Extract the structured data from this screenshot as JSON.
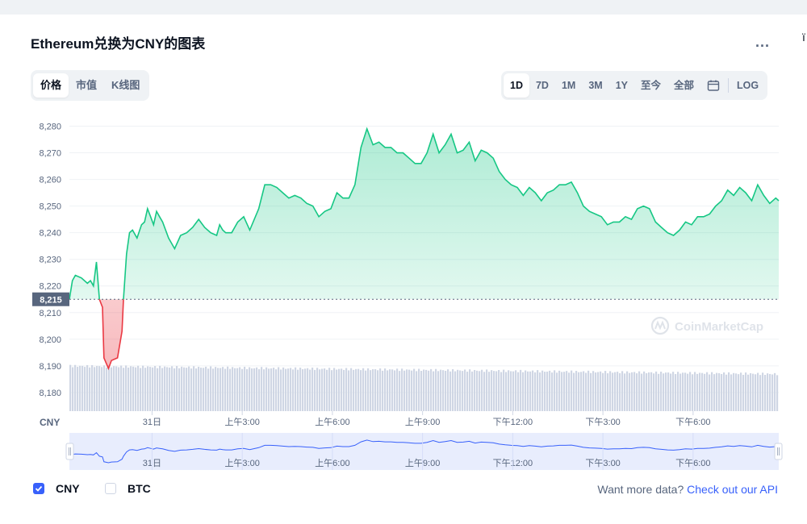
{
  "header": {
    "title": "Ethereum兑换为CNY的图表",
    "more_label": "...",
    "edge_glyph": "ï"
  },
  "view_tabs": [
    {
      "label": "价格",
      "active": true
    },
    {
      "label": "市值",
      "active": false
    },
    {
      "label": "K线图",
      "active": false
    }
  ],
  "range_tabs": [
    {
      "label": "1D",
      "active": true
    },
    {
      "label": "7D",
      "active": false
    },
    {
      "label": "1M",
      "active": false
    },
    {
      "label": "3M",
      "active": false
    },
    {
      "label": "1Y",
      "active": false
    },
    {
      "label": "至今",
      "active": false
    },
    {
      "label": "全部",
      "active": false
    }
  ],
  "calendar_icon": "calendar-icon",
  "log_label": "LOG",
  "chart_data": {
    "type": "line",
    "currency_label": "CNY",
    "y_ticks": [
      "8,280",
      "8,270",
      "8,260",
      "8,250",
      "8,240",
      "8,230",
      "8,220",
      "8,210",
      "8,200",
      "8,190",
      "8,180"
    ],
    "ylim": [
      8173,
      8285
    ],
    "x_ticks": [
      "31日",
      "上午3:00",
      "上午6:00",
      "上午9:00",
      "下午12:00",
      "下午3:00",
      "下午6:00"
    ],
    "x_tick_times": [
      1.75,
      4.75,
      7.75,
      10.75,
      13.75,
      16.75,
      19.75
    ],
    "time_range": [
      -1,
      22.6
    ],
    "open_price": 8215,
    "open_label": "8,215",
    "watermark": "CoinMarketCap",
    "colors": {
      "up": "#16c784",
      "down": "#ea3943",
      "volume": "#cfd6e4",
      "navigator": "#3861fb"
    },
    "series": [
      {
        "values": [
          [
            -1,
            8215
          ],
          [
            -0.9,
            8222
          ],
          [
            -0.8,
            8224
          ],
          [
            -0.6,
            8223
          ],
          [
            -0.4,
            8221
          ],
          [
            -0.3,
            8222
          ],
          [
            -0.2,
            8220
          ],
          [
            -0.1,
            8229
          ],
          [
            0,
            8215
          ],
          [
            0.1,
            8212
          ],
          [
            0.15,
            8193
          ],
          [
            0.3,
            8189
          ],
          [
            0.4,
            8192
          ],
          [
            0.6,
            8193
          ],
          [
            0.75,
            8203
          ],
          [
            0.8,
            8215
          ],
          [
            0.9,
            8232
          ],
          [
            1.0,
            8240
          ],
          [
            1.1,
            8241
          ],
          [
            1.25,
            8238
          ],
          [
            1.4,
            8243
          ],
          [
            1.5,
            8244
          ],
          [
            1.6,
            8249
          ],
          [
            1.7,
            8246
          ],
          [
            1.8,
            8243
          ],
          [
            1.9,
            8248
          ],
          [
            2.0,
            8246
          ],
          [
            2.1,
            8244
          ],
          [
            2.3,
            8238
          ],
          [
            2.5,
            8234
          ],
          [
            2.7,
            8239
          ],
          [
            2.9,
            8240
          ],
          [
            3.1,
            8242
          ],
          [
            3.3,
            8245
          ],
          [
            3.5,
            8242
          ],
          [
            3.7,
            8240
          ],
          [
            3.9,
            8239
          ],
          [
            4.0,
            8243
          ],
          [
            4.1,
            8241
          ],
          [
            4.2,
            8240
          ],
          [
            4.4,
            8240
          ],
          [
            4.6,
            8244
          ],
          [
            4.8,
            8246
          ],
          [
            5.0,
            8241
          ],
          [
            5.3,
            8249
          ],
          [
            5.5,
            8258
          ],
          [
            5.7,
            8258
          ],
          [
            5.9,
            8257
          ],
          [
            6.1,
            8255
          ],
          [
            6.3,
            8253
          ],
          [
            6.5,
            8254
          ],
          [
            6.7,
            8253
          ],
          [
            6.9,
            8251
          ],
          [
            7.1,
            8250
          ],
          [
            7.3,
            8246
          ],
          [
            7.5,
            8248
          ],
          [
            7.7,
            8249
          ],
          [
            7.9,
            8255
          ],
          [
            8.1,
            8253
          ],
          [
            8.3,
            8253
          ],
          [
            8.5,
            8258
          ],
          [
            8.7,
            8272
          ],
          [
            8.9,
            8279
          ],
          [
            9.1,
            8273
          ],
          [
            9.3,
            8274
          ],
          [
            9.5,
            8272
          ],
          [
            9.7,
            8272
          ],
          [
            9.9,
            8270
          ],
          [
            10.1,
            8270
          ],
          [
            10.3,
            8268
          ],
          [
            10.5,
            8266
          ],
          [
            10.7,
            8266
          ],
          [
            10.9,
            8270
          ],
          [
            11.1,
            8277
          ],
          [
            11.3,
            8270
          ],
          [
            11.5,
            8273
          ],
          [
            11.7,
            8277
          ],
          [
            11.9,
            8270
          ],
          [
            12.1,
            8271
          ],
          [
            12.3,
            8274
          ],
          [
            12.5,
            8267
          ],
          [
            12.7,
            8271
          ],
          [
            12.9,
            8270
          ],
          [
            13.1,
            8268
          ],
          [
            13.3,
            8263
          ],
          [
            13.5,
            8260
          ],
          [
            13.7,
            8258
          ],
          [
            13.9,
            8257
          ],
          [
            14.1,
            8254
          ],
          [
            14.3,
            8257
          ],
          [
            14.5,
            8255
          ],
          [
            14.7,
            8252
          ],
          [
            14.9,
            8255
          ],
          [
            15.1,
            8256
          ],
          [
            15.3,
            8258
          ],
          [
            15.5,
            8258
          ],
          [
            15.7,
            8259
          ],
          [
            15.9,
            8255
          ],
          [
            16.1,
            8250
          ],
          [
            16.3,
            8248
          ],
          [
            16.5,
            8247
          ],
          [
            16.7,
            8246
          ],
          [
            16.9,
            8243
          ],
          [
            17.1,
            8244
          ],
          [
            17.3,
            8244
          ],
          [
            17.5,
            8246
          ],
          [
            17.7,
            8245
          ],
          [
            17.9,
            8249
          ],
          [
            18.1,
            8250
          ],
          [
            18.3,
            8249
          ],
          [
            18.5,
            8244
          ],
          [
            18.7,
            8242
          ],
          [
            18.9,
            8240
          ],
          [
            19.1,
            8239
          ],
          [
            19.3,
            8241
          ],
          [
            19.5,
            8244
          ],
          [
            19.7,
            8243
          ],
          [
            19.9,
            8246
          ],
          [
            20.1,
            8246
          ],
          [
            20.3,
            8247
          ],
          [
            20.5,
            8250
          ],
          [
            20.7,
            8252
          ],
          [
            20.9,
            8256
          ],
          [
            21.1,
            8254
          ],
          [
            21.3,
            8257
          ],
          [
            21.5,
            8255
          ],
          [
            21.7,
            8252
          ],
          [
            21.9,
            8258
          ],
          [
            22.1,
            8254
          ],
          [
            22.3,
            8251
          ],
          [
            22.5,
            8253
          ],
          [
            22.6,
            8252
          ]
        ]
      }
    ]
  },
  "legend": {
    "items": [
      {
        "label": "CNY",
        "checked": true
      },
      {
        "label": "BTC",
        "checked": false
      }
    ]
  },
  "api_prompt": {
    "text": "Want more data?",
    "link": "Check out our API"
  }
}
